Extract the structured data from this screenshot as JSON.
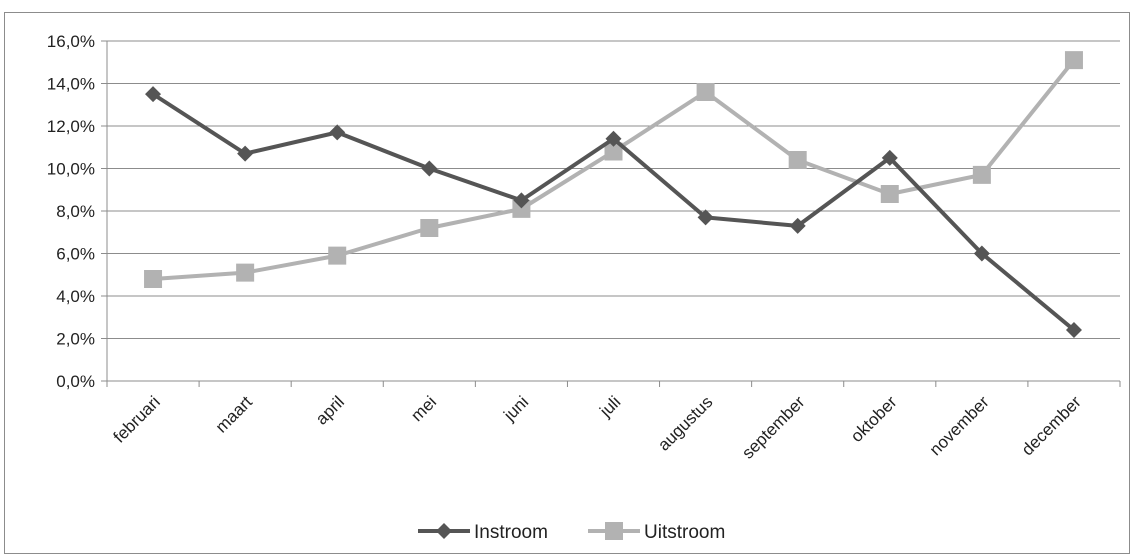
{
  "chart_data": {
    "type": "line",
    "categories": [
      "februari",
      "maart",
      "april",
      "mei",
      "juni",
      "juli",
      "augustus",
      "september",
      "oktober",
      "november",
      "december"
    ],
    "series": [
      {
        "name": "Instroom",
        "color": "#555555",
        "marker": "diamond",
        "values": [
          13.5,
          10.7,
          11.7,
          10.0,
          8.5,
          11.4,
          7.7,
          7.3,
          10.5,
          6.0,
          2.4
        ]
      },
      {
        "name": "Uitstroom",
        "color": "#b2b2b2",
        "marker": "square",
        "values": [
          4.8,
          5.1,
          5.9,
          7.2,
          8.1,
          10.8,
          13.6,
          10.4,
          8.8,
          9.7,
          15.1
        ]
      }
    ],
    "y_ticks": [
      "0,0%",
      "2,0%",
      "4,0%",
      "6,0%",
      "8,0%",
      "10,0%",
      "12,0%",
      "14,0%",
      "16,0%"
    ],
    "ylim": [
      0,
      16
    ],
    "grid": true,
    "legend_position": "bottom-center"
  }
}
